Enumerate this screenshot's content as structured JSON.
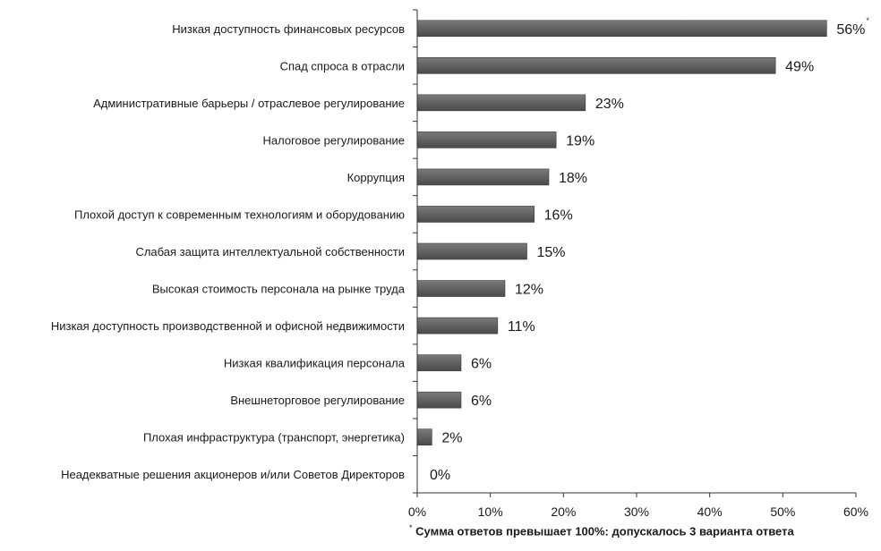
{
  "chart_data": {
    "type": "bar",
    "orientation": "horizontal",
    "categories": [
      "Низкая доступность финансовых ресурсов",
      "Спад спроса в отрасли",
      "Административные барьеры / отраслевое регулирование",
      "Налоговое регулирование",
      "Коррупция",
      "Плохой доступ к современным технологиям и оборудованию",
      "Слабая защита интеллектуальной собственности",
      "Высокая стоимость персонала на рынке труда",
      "Низкая доступность производственной и офисной недвижимости",
      "Низкая квалификация персонала",
      "Внешнеторговое регулирование",
      "Плохая инфраструктура (транспорт, энергетика)",
      "Неадекватные решения акционеров и/или Советов Директоров"
    ],
    "values": [
      56,
      49,
      23,
      19,
      18,
      16,
      15,
      12,
      11,
      6,
      6,
      2,
      0
    ],
    "value_labels": [
      "56%",
      "49%",
      "23%",
      "19%",
      "18%",
      "16%",
      "15%",
      "12%",
      "11%",
      "6%",
      "6%",
      "2%",
      "0%"
    ],
    "xlim": [
      0,
      60
    ],
    "xticks": [
      0,
      10,
      20,
      30,
      40,
      50,
      60
    ],
    "xtick_labels": [
      "0%",
      "10%",
      "20%",
      "30%",
      "40%",
      "50%",
      "60%"
    ],
    "bar_color": "#595959",
    "grid": false,
    "legend": "none",
    "first_bar_marker": "*",
    "footnote": {
      "marker": "*",
      "text": "Сумма ответов превышает 100%: допускалось 3 варианта ответа"
    }
  }
}
